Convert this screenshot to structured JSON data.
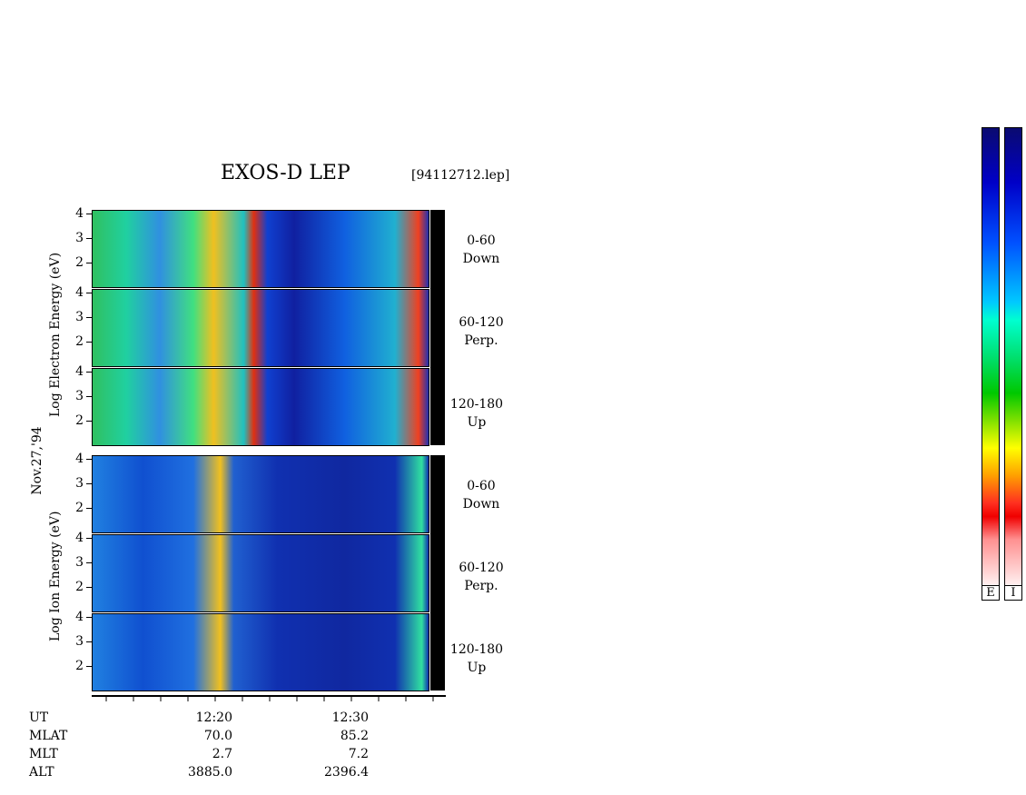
{
  "header": {
    "title": "EXOS-D LEP",
    "filename": "[94112712.lep]"
  },
  "side_label": "Nov.27,'94",
  "electron_axis_label": "Log Electron Energy (eV)",
  "ion_axis_label": "Log Ion Energy (eV)",
  "y_ticks": [
    "4",
    "3",
    "2"
  ],
  "electron_panels": [
    {
      "angle": "0-60",
      "dir": "Down"
    },
    {
      "angle": "60-120",
      "dir": "Perp."
    },
    {
      "angle": "120-180",
      "dir": "Up"
    }
  ],
  "ion_panels": [
    {
      "angle": "0-60",
      "dir": "Down"
    },
    {
      "angle": "60-120",
      "dir": "Perp."
    },
    {
      "angle": "120-180",
      "dir": "Up"
    }
  ],
  "footer": {
    "row_labels": [
      "UT",
      "MLAT",
      "MLT",
      "ALT"
    ],
    "col1": [
      "12:20",
      "70.0",
      "2.7",
      "3885.0"
    ],
    "col2": [
      "12:30",
      "85.2",
      "7.2",
      "2396.4"
    ]
  },
  "colorbars": [
    "E",
    "I"
  ],
  "chart_data": {
    "type": "heatmap",
    "title": "EXOS-D LEP",
    "x_tick_labels": [
      "12:20",
      "12:30"
    ],
    "y_tick_labels": [
      "4",
      "3",
      "2"
    ],
    "grid": false,
    "legend": "right colorbars E and I",
    "series": [
      {
        "name": "0-60 Down"
      },
      {
        "name": "60-120 Perp."
      },
      {
        "name": "120-180 Up"
      }
    ]
  }
}
